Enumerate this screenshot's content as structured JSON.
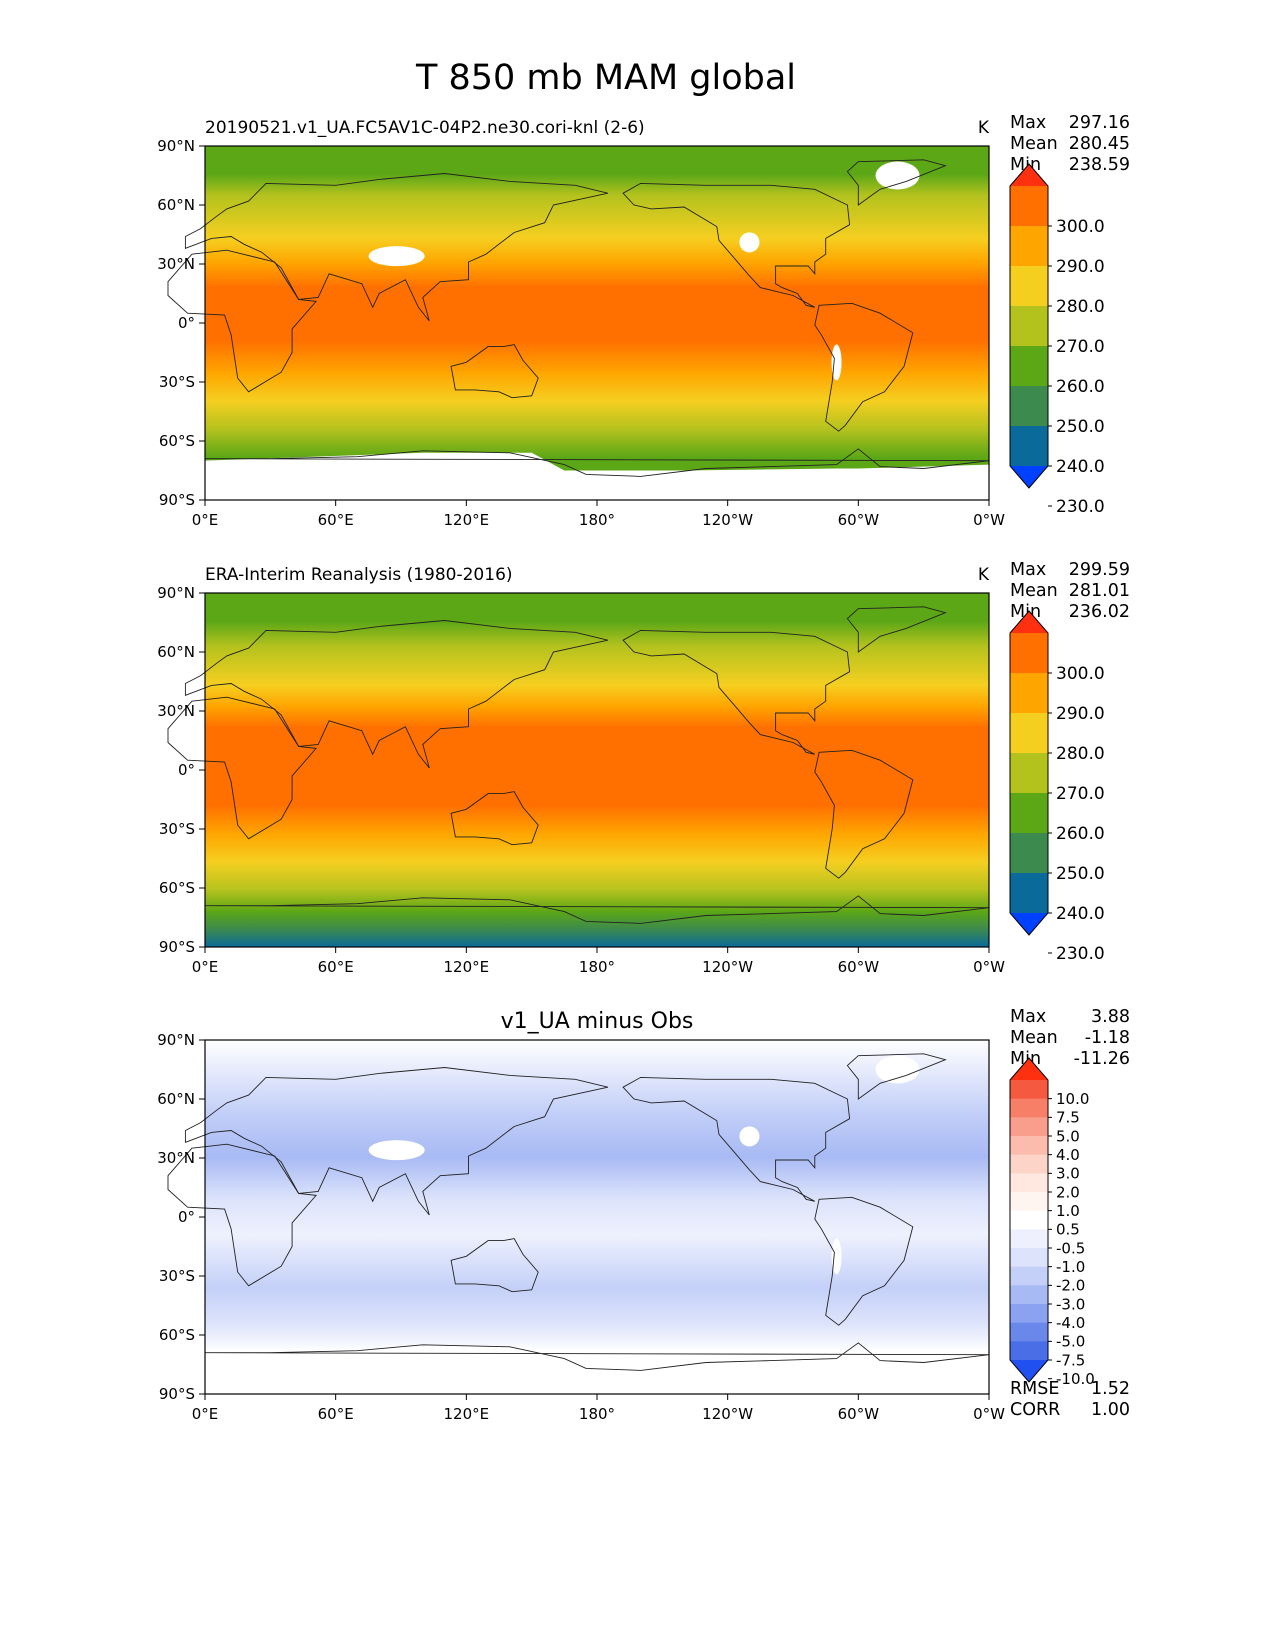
{
  "figure_title": "T 850 mb MAM global",
  "chart_data": [
    {
      "type": "heatmap",
      "title": "20190521.v1_UA.FC5AV1C-04P2.ne30.cori-knl (2-6)",
      "units": "K",
      "stats": [
        {
          "label": "Max",
          "value": "297.16"
        },
        {
          "label": "Mean",
          "value": "280.45"
        },
        {
          "label": "Min",
          "value": "238.59"
        }
      ],
      "colorbar": {
        "labels": [
          "300.0",
          "290.0",
          "280.0",
          "270.0",
          "260.0",
          "250.0",
          "240.0",
          "230.0"
        ],
        "colors": [
          "#ff3010",
          "#ff7000",
          "#ffa500",
          "#f5cf20",
          "#b4c21e",
          "#5ca716",
          "#3c8a4e",
          "#0a6a9a",
          "#0040ff"
        ]
      },
      "lat_ticks": [
        "90°N",
        "60°N",
        "30°N",
        "0°",
        "30°S",
        "60°S",
        "90°S"
      ],
      "lon_ticks": [
        "0°E",
        "60°E",
        "120°E",
        "180°",
        "120°W",
        "60°W",
        "0°W"
      ]
    },
    {
      "type": "heatmap",
      "title": "ERA-Interim Reanalysis (1980-2016)",
      "units": "K",
      "stats": [
        {
          "label": "Max",
          "value": "299.59"
        },
        {
          "label": "Mean",
          "value": "281.01"
        },
        {
          "label": "Min",
          "value": "236.02"
        }
      ],
      "colorbar": {
        "labels": [
          "300.0",
          "290.0",
          "280.0",
          "270.0",
          "260.0",
          "250.0",
          "240.0",
          "230.0"
        ],
        "colors": [
          "#ff3010",
          "#ff7000",
          "#ffa500",
          "#f5cf20",
          "#b4c21e",
          "#5ca716",
          "#3c8a4e",
          "#0a6a9a",
          "#0040ff"
        ]
      },
      "lat_ticks": [
        "90°N",
        "60°N",
        "30°N",
        "0°",
        "30°S",
        "60°S",
        "90°S"
      ],
      "lon_ticks": [
        "0°E",
        "60°E",
        "120°E",
        "180°",
        "120°W",
        "60°W",
        "0°W"
      ]
    },
    {
      "type": "heatmap",
      "title": "v1_UA minus Obs",
      "units": "",
      "stats": [
        {
          "label": "Max",
          "value": "3.88"
        },
        {
          "label": "Mean",
          "value": "-1.18"
        },
        {
          "label": "Min",
          "value": "-11.26"
        }
      ],
      "bottom_stats": [
        {
          "label": "RMSE",
          "value": "1.52"
        },
        {
          "label": "CORR",
          "value": "1.00"
        }
      ],
      "colorbar": {
        "labels": [
          "10.0",
          "7.5",
          "5.0",
          "4.0",
          "3.0",
          "2.0",
          "1.0",
          "0.5",
          "-0.5",
          "-1.0",
          "-2.0",
          "-3.0",
          "-4.0",
          "-5.0",
          "-7.5",
          "-10.0"
        ],
        "colors": [
          "#ff3010",
          "#f55a40",
          "#f77f68",
          "#f99e8c",
          "#fbbcad",
          "#fcd4c8",
          "#fee8e0",
          "#fff5f0",
          "#ffffff",
          "#eef1fd",
          "#dce3fb",
          "#c4d0f8",
          "#a8baf4",
          "#8aa2ef",
          "#6a88ea",
          "#4a6ee6",
          "#2050f0"
        ]
      },
      "lat_ticks": [
        "90°N",
        "60°N",
        "30°N",
        "0°",
        "30°S",
        "60°S",
        "90°S"
      ],
      "lon_ticks": [
        "0°E",
        "60°E",
        "120°E",
        "180°",
        "120°W",
        "60°W",
        "0°W"
      ]
    }
  ]
}
